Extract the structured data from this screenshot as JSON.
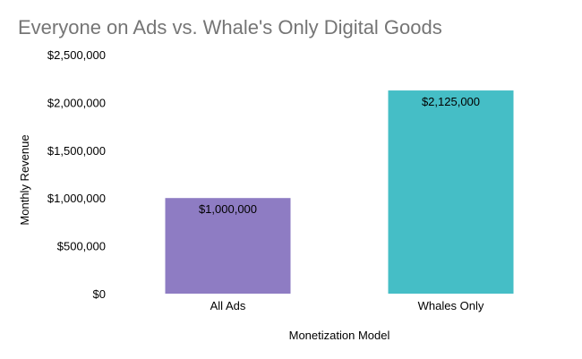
{
  "chart_data": {
    "type": "bar",
    "title": "Everyone on Ads vs. Whale's Only Digital Goods",
    "xlabel": "Monetization Model",
    "ylabel": "Monthly Revenue",
    "categories": [
      "All Ads",
      "Whales Only"
    ],
    "values": [
      1000000,
      2125000
    ],
    "data_labels": [
      "$1,000,000",
      "$2,125,000"
    ],
    "colors": [
      "#8E7CC3",
      "#45BEC6"
    ],
    "ylim": [
      0,
      2500000
    ],
    "yticks": [
      0,
      500000,
      1000000,
      1500000,
      2000000,
      2500000
    ],
    "ytick_labels": [
      "$0",
      "$500,000",
      "$1,000,000",
      "$1,500,000",
      "$2,000,000",
      "$2,500,000"
    ],
    "grid": false,
    "legend": "none"
  }
}
